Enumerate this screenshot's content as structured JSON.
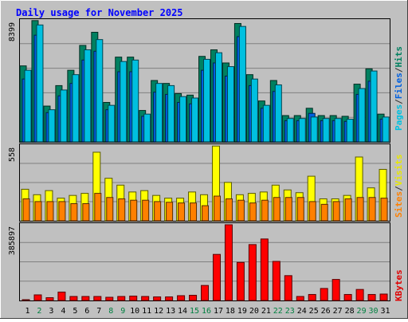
{
  "chart_data": {
    "type": "bar",
    "title": "Daily usage for November 2025",
    "days": [
      "1",
      "2",
      "3",
      "4",
      "5",
      "6",
      "7",
      "8",
      "9",
      "10",
      "11",
      "12",
      "13",
      "14",
      "15",
      "16",
      "17",
      "18",
      "19",
      "20",
      "21",
      "22",
      "23",
      "24",
      "25",
      "26",
      "27",
      "28",
      "29",
      "30",
      "31"
    ],
    "weekend_days": [
      "2",
      "8",
      "9",
      "15",
      "16",
      "22",
      "23",
      "29",
      "30"
    ],
    "panels": [
      {
        "max_label": "8399",
        "ymax": 8399,
        "right_labels": [
          "Pages",
          "/",
          "Files",
          "/",
          "Hits"
        ],
        "right_colors": [
          "#00c0e0",
          "#303030",
          "#0060e0",
          "#303030",
          "#008060"
        ],
        "series": [
          {
            "name": "Hits",
            "color": "#008060",
            "values": [
              5200,
              8300,
              2450,
              3850,
              4900,
              6600,
              7500,
              2700,
              5800,
              5800,
              2150,
              4200,
              4000,
              3300,
              3200,
              5850,
              6300,
              5400,
              8100,
              4600,
              2800,
              4200,
              1800,
              1800,
              2300,
              1800,
              1800,
              1750,
              3950,
              5000,
              1900
            ]
          },
          {
            "name": "Files",
            "color": "#0060e0",
            "values": [
              4300,
              7300,
              2000,
              3150,
              4000,
              5600,
              6200,
              2200,
              4800,
              4800,
              1750,
              3400,
              3250,
              2700,
              2600,
              4900,
              5400,
              4500,
              7200,
              3850,
              2300,
              3450,
              1450,
              1450,
              1950,
              1450,
              1450,
              1400,
              3250,
              4150,
              1550
            ]
          },
          {
            "name": "Pages",
            "color": "#00c0e0",
            "values": [
              4900,
              8000,
              2200,
              3550,
              4600,
              6300,
              7000,
              2500,
              5500,
              5600,
              1900,
              4000,
              3850,
              3100,
              3000,
              5650,
              6100,
              5150,
              7900,
              4300,
              2500,
              3900,
              1600,
              1600,
              1700,
              1600,
              1600,
              1550,
              3650,
              4850,
              1700
            ]
          }
        ]
      },
      {
        "max_label": "558",
        "ymax": 558,
        "right_labels": [
          "Sites",
          "/",
          "Visits"
        ],
        "right_colors": [
          "#ff8000",
          "#303030",
          "#e8e800"
        ],
        "series": [
          {
            "name": "Visits",
            "color": "#ffff00",
            "values": [
              230,
              190,
              220,
              165,
              185,
              200,
              500,
              310,
              260,
              210,
              220,
              185,
              165,
              165,
              210,
              190,
              545,
              280,
              190,
              200,
              210,
              260,
              225,
              205,
              325,
              160,
              160,
              185,
              465,
              240,
              375
            ]
          },
          {
            "name": "Sites",
            "color": "#ff8000",
            "values": [
              160,
              140,
              140,
              140,
              125,
              125,
              200,
              170,
              160,
              150,
              150,
              140,
              135,
              130,
              130,
              110,
              180,
              160,
              150,
              130,
              150,
              170,
              170,
              170,
              140,
              120,
              140,
              160,
              170,
              170,
              165
            ]
          }
        ]
      },
      {
        "max_label": "385897",
        "ymax": 385897,
        "right_labels": [
          "KBytes"
        ],
        "right_colors": [
          "#e00000"
        ],
        "series": [
          {
            "name": "KBytes",
            "color": "#ff0000",
            "values": [
              4000,
              28000,
              14000,
              42000,
              20000,
              20000,
              20000,
              16000,
              20000,
              22000,
              20000,
              18000,
              18000,
              24000,
              26000,
              75000,
              230000,
              378000,
              190000,
              279000,
              307000,
              195000,
              124000,
              20000,
              30000,
              60000,
              105000,
              30000,
              55000,
              30000,
              32000
            ]
          }
        ]
      }
    ],
    "colors": {
      "background": "#c0c0c0",
      "title": "#0000ff",
      "grid": "#808080",
      "weekday_label": "#000000",
      "weekend_label": "#008040"
    }
  }
}
